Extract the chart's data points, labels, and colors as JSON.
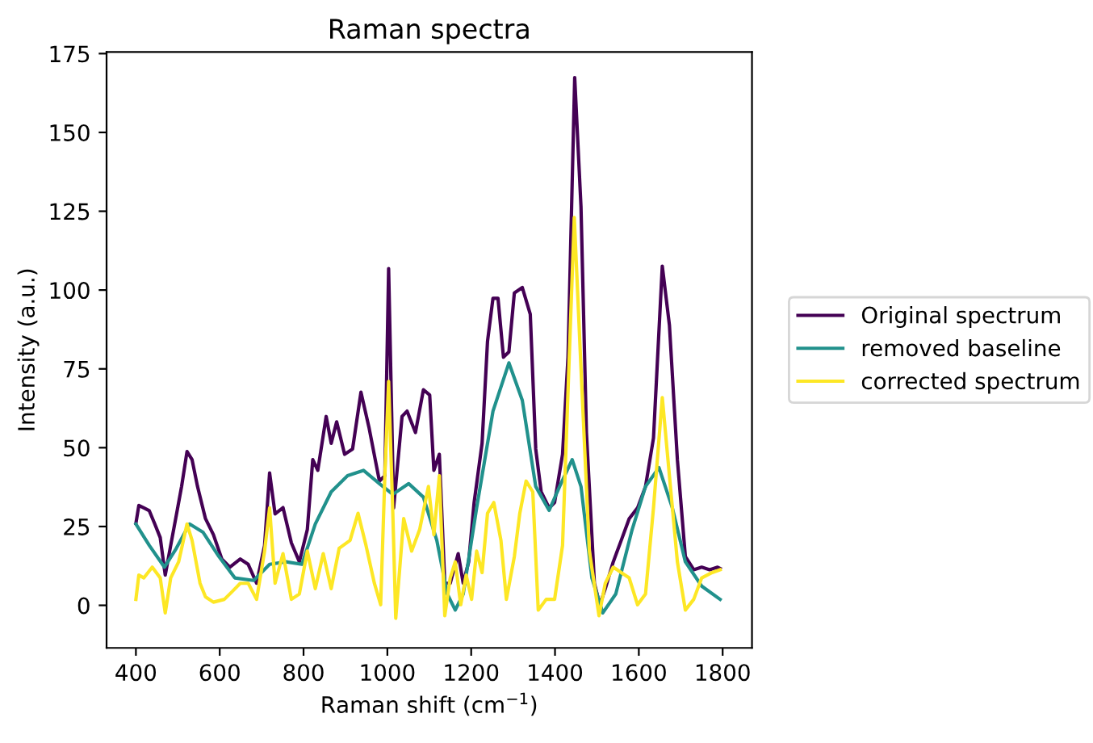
{
  "chart_data": {
    "type": "line",
    "title": "Raman spectra",
    "xlabel": "Raman shift (cm$^{−1}$)",
    "ylabel": "Intensity (a.u.)",
    "xlim": [
      330,
      1870
    ],
    "ylim": [
      -13.5,
      175.5
    ],
    "xticks": [
      400,
      600,
      800,
      1000,
      1200,
      1400,
      1600,
      1800
    ],
    "yticks": [
      0,
      25,
      50,
      75,
      100,
      125,
      150,
      175
    ],
    "grid": false,
    "legend": "right",
    "marker": "none",
    "line_style": "solid",
    "series": [
      {
        "name": "Original spectrum",
        "color": "#440154",
        "x": [
          400,
          407,
          419,
          432,
          445,
          458,
          470,
          483,
          496,
          509,
          522,
          534,
          547,
          566,
          585,
          605,
          624,
          649,
          668,
          688,
          707,
          719,
          732,
          751,
          771,
          790,
          809,
          822,
          834,
          854,
          866,
          879,
          898,
          917,
          937,
          956,
          981,
          994,
          1003,
          1015,
          1035,
          1047,
          1067,
          1086,
          1101,
          1111,
          1124,
          1137,
          1150,
          1169,
          1181,
          1194,
          1207,
          1226,
          1239,
          1252,
          1264,
          1277,
          1290,
          1303,
          1322,
          1341,
          1354,
          1367,
          1386,
          1399,
          1418,
          1431,
          1447,
          1462,
          1475,
          1494,
          1507,
          1520,
          1539,
          1558,
          1577,
          1597,
          1616,
          1635,
          1656,
          1673,
          1692,
          1711,
          1731,
          1750,
          1769,
          1788,
          1794
        ],
        "values": [
          26,
          31.7,
          30.9,
          30,
          25.8,
          21.5,
          9.6,
          19,
          28.3,
          37.7,
          48.8,
          46.2,
          37.7,
          27.5,
          22.4,
          14.7,
          12.1,
          14.7,
          13,
          7,
          19,
          42,
          29,
          31,
          19.8,
          13.8,
          24,
          46.2,
          42.8,
          59.9,
          51.4,
          58.2,
          47.9,
          49.6,
          67.6,
          56.5,
          39.4,
          41.1,
          106.8,
          30.9,
          59.9,
          61.6,
          54.8,
          68.4,
          66.7,
          42.8,
          47.9,
          7,
          7,
          16.4,
          7,
          13.8,
          32.6,
          51.4,
          83.8,
          97.4,
          97.4,
          78.7,
          80.4,
          99.1,
          100.8,
          92.3,
          49.6,
          36,
          30.9,
          32.6,
          47.9,
          78.7,
          167.4,
          126.4,
          54.8,
          7,
          0.2,
          5.3,
          13.8,
          20.6,
          27.5,
          30.9,
          37.7,
          53.1,
          107.6,
          88.9,
          46.2,
          15.5,
          11.3,
          12.1,
          11.3,
          12.1,
          11.7
        ]
      },
      {
        "name": "removed baseline",
        "color": "#21918c",
        "x": [
          400,
          432,
          468,
          496,
          528,
          560,
          598,
          636,
          681,
          719,
          758,
          796,
          828,
          866,
          905,
          943,
          981,
          1013,
          1051,
          1086,
          1118,
          1143,
          1162,
          1181,
          1213,
          1252,
          1290,
          1322,
          1354,
          1386,
          1411,
          1441,
          1462,
          1488,
          1514,
          1545,
          1584,
          1616,
          1648,
          1680,
          1711,
          1750,
          1794
        ],
        "values": [
          25.8,
          19,
          12.1,
          18,
          25.8,
          23.2,
          15.5,
          8.7,
          7.9,
          13,
          13.8,
          13,
          25.8,
          36,
          41.1,
          42.8,
          38.6,
          35.2,
          38.6,
          34.3,
          20.6,
          3.6,
          -1.5,
          3.6,
          30.9,
          61.6,
          76.9,
          65,
          37.7,
          30.1,
          37.7,
          46.2,
          37.7,
          8.7,
          -2.4,
          3.6,
          24,
          37.7,
          43.7,
          30.9,
          13.8,
          6.1,
          1.9
        ]
      },
      {
        "name": "corrected spectrum",
        "color": "#fde725",
        "x": [
          400,
          407,
          419,
          439,
          458,
          470,
          483,
          502,
          522,
          534,
          553,
          566,
          585,
          611,
          630,
          649,
          668,
          688,
          707,
          719,
          732,
          751,
          771,
          790,
          809,
          828,
          847,
          866,
          885,
          911,
          930,
          949,
          969,
          984,
          994,
          1003,
          1013,
          1020,
          1039,
          1058,
          1077,
          1098,
          1111,
          1124,
          1137,
          1150,
          1162,
          1175,
          1188,
          1201,
          1213,
          1226,
          1239,
          1254,
          1271,
          1284,
          1303,
          1316,
          1331,
          1347,
          1360,
          1379,
          1399,
          1418,
          1433,
          1446,
          1462,
          1482,
          1505,
          1520,
          1539,
          1558,
          1577,
          1597,
          1616,
          1635,
          1656,
          1673,
          1692,
          1711,
          1731,
          1750,
          1775,
          1794
        ],
        "values": [
          1.9,
          9.6,
          8.7,
          12.1,
          8.7,
          -2.4,
          8.7,
          13.8,
          25.8,
          20.6,
          7,
          2.7,
          1,
          1.9,
          4.4,
          7,
          7,
          1.9,
          17.2,
          30.9,
          7,
          16.4,
          1.9,
          3.6,
          17.2,
          5.3,
          16.4,
          5.3,
          18.1,
          20.6,
          29.2,
          19,
          7,
          0.2,
          41.1,
          71,
          29.2,
          -4.1,
          27.5,
          17.2,
          24,
          37.7,
          22.4,
          41.1,
          -3.3,
          8.7,
          13.8,
          0.2,
          9.6,
          1.9,
          17.2,
          10.4,
          29.2,
          32.6,
          20.6,
          1.9,
          15.5,
          29.2,
          39.4,
          36,
          -1.5,
          1.9,
          1.9,
          19,
          75.2,
          123,
          75.2,
          17.2,
          -3.3,
          7,
          12.1,
          10.4,
          8.7,
          0.2,
          3.6,
          30.9,
          65.9,
          41.1,
          13.8,
          -1.5,
          1.9,
          8.7,
          10.4,
          11.3
        ]
      }
    ]
  }
}
